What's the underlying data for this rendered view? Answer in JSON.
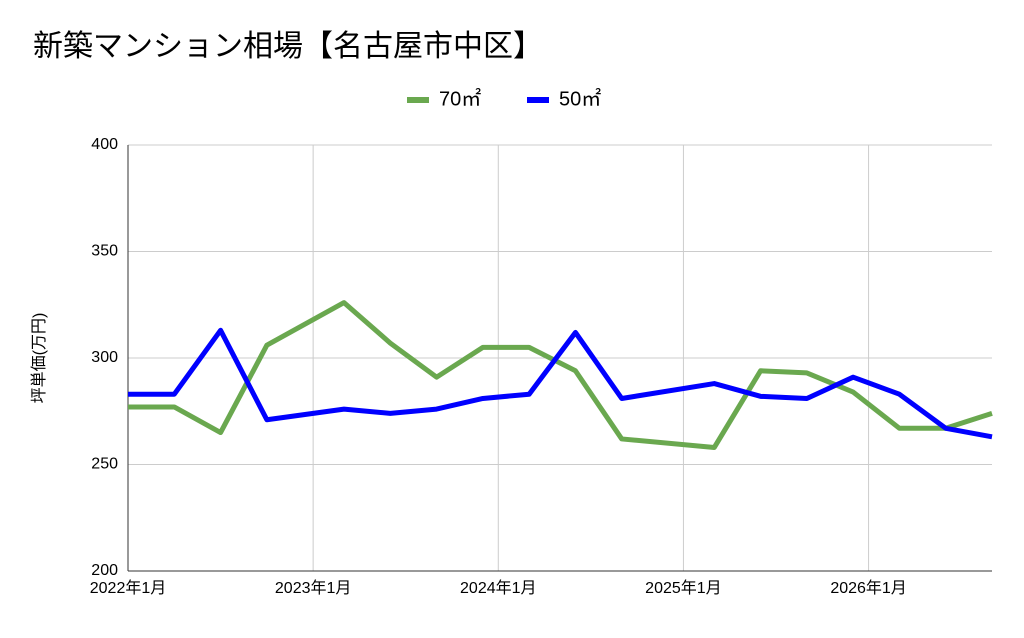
{
  "chart_data": {
    "type": "line",
    "title": "新築マンション相場【名古屋市中区】",
    "y_label": "坪単価(万円)",
    "x": [
      0,
      3,
      6,
      9,
      14,
      17,
      20,
      23,
      26,
      29,
      32,
      38,
      41,
      44,
      47,
      50,
      53,
      56
    ],
    "xlim": [
      0,
      56
    ],
    "xticks": [
      {
        "value": 0,
        "label": "2022年1月"
      },
      {
        "value": 12,
        "label": "2023年1月"
      },
      {
        "value": 24,
        "label": "2024年1月"
      },
      {
        "value": 36,
        "label": "2025年1月"
      },
      {
        "value": 48,
        "label": "2026年1月"
      }
    ],
    "ylim": [
      200,
      400
    ],
    "yticks": [
      200,
      250,
      300,
      350,
      400
    ],
    "grid": true,
    "legend": "top",
    "series": [
      {
        "name": "70㎡",
        "color": "#6aa84f",
        "values": [
          277,
          277,
          265,
          306,
          326,
          307,
          291,
          305,
          305,
          294,
          262,
          258,
          294,
          293,
          284,
          267,
          267,
          274
        ]
      },
      {
        "name": "50㎡",
        "color": "#0000ff",
        "values": [
          283,
          283,
          313,
          271,
          276,
          274,
          276,
          281,
          283,
          312,
          281,
          288,
          282,
          281,
          291,
          283,
          267,
          263
        ]
      }
    ]
  }
}
